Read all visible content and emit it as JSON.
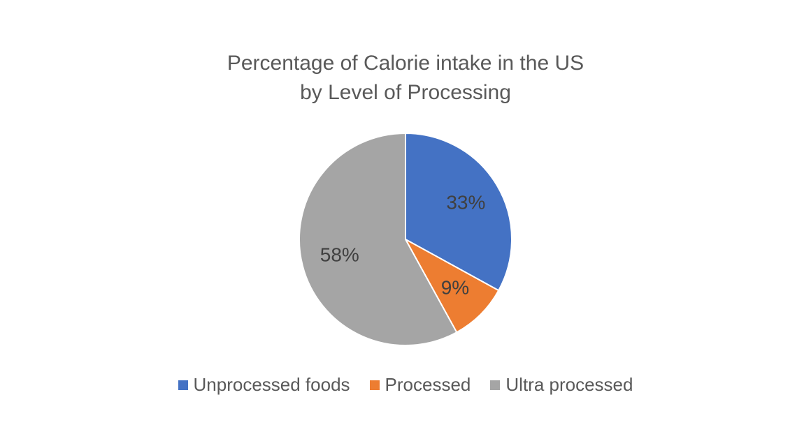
{
  "chart_data": {
    "type": "pie",
    "title_lines": [
      "Percentage of Calorie intake in the US",
      "by Level of Processing"
    ],
    "categories": [
      "Unprocessed foods",
      "Processed",
      "Ultra processed"
    ],
    "values": [
      33,
      9,
      58
    ],
    "labels": [
      "33%",
      "9%",
      "58%"
    ],
    "colors": [
      "#4472C4",
      "#ED7D31",
      "#A5A5A5"
    ],
    "legend_position": "bottom",
    "start_angle_deg": 0,
    "direction": "clockwise"
  }
}
